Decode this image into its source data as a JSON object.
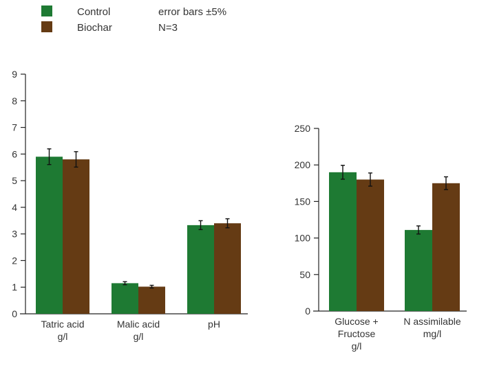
{
  "legend": {
    "items": [
      {
        "label": "Control",
        "color": "#1e7a33"
      },
      {
        "label": "Biochar",
        "color": "#653b14"
      }
    ],
    "notes": [
      "error bars ±5%",
      "N=3"
    ]
  },
  "chart_data": [
    {
      "type": "bar",
      "categories": [
        [
          "Tatric acid",
          "g/l"
        ],
        [
          "Malic acid",
          "g/l"
        ],
        [
          "pH"
        ]
      ],
      "series": [
        {
          "name": "Control",
          "color": "#1e7a33",
          "values": [
            5.9,
            1.15,
            3.33
          ]
        },
        {
          "name": "Biochar",
          "color": "#653b14",
          "values": [
            5.8,
            1.02,
            3.4
          ]
        }
      ],
      "error_pct": 5,
      "ylim": [
        0,
        9
      ],
      "yticks": [
        "0",
        "1",
        "2",
        "3",
        "4",
        "5",
        "6",
        "7",
        "8",
        "9"
      ],
      "ytick_values": [
        0,
        1,
        2,
        3,
        4,
        5,
        6,
        7,
        8,
        9
      ],
      "grid": false
    },
    {
      "type": "bar",
      "categories": [
        [
          "Glucose +",
          "Fructose",
          "g/l"
        ],
        [
          "N assimilable",
          "mg/l"
        ]
      ],
      "series": [
        {
          "name": "Control",
          "color": "#1e7a33",
          "values": [
            190,
            111
          ]
        },
        {
          "name": "Biochar",
          "color": "#653b14",
          "values": [
            180,
            175
          ]
        }
      ],
      "error_pct": 5,
      "ylim": [
        0,
        250
      ],
      "yticks": [
        "0",
        "50",
        "100",
        "150",
        "200",
        "250"
      ],
      "ytick_values": [
        0,
        50,
        100,
        150,
        200,
        250
      ],
      "grid": false
    }
  ]
}
